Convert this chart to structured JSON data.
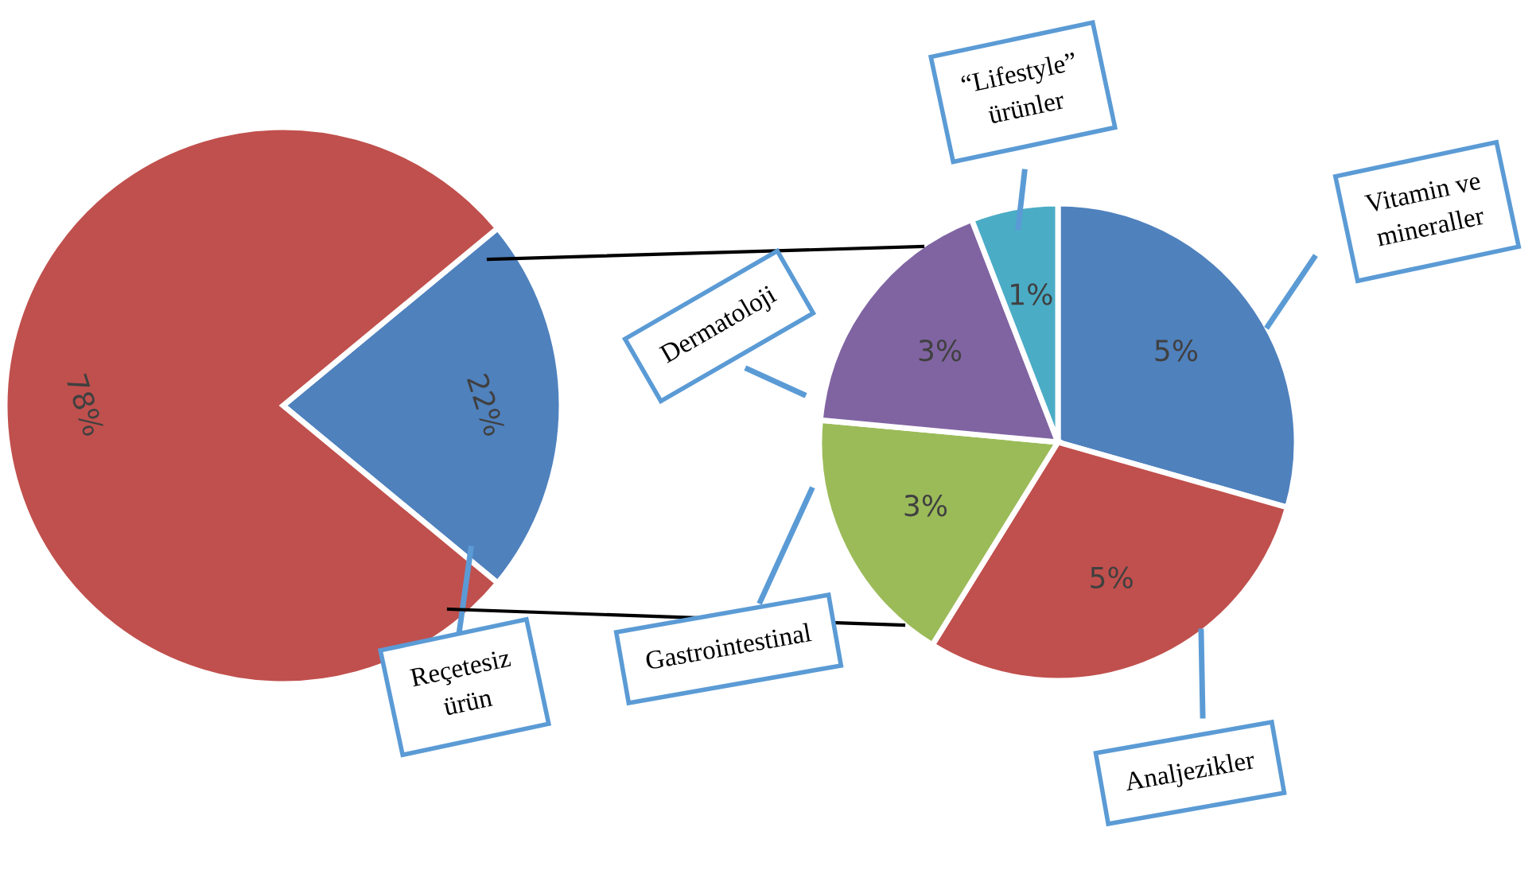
{
  "chart_data": [
    {
      "type": "pie",
      "categories": [
        "Reçetesiz ürün",
        null
      ],
      "values": [
        22,
        78
      ],
      "colors": [
        "#4f81bd",
        "#c0504d"
      ],
      "value_labels": [
        "22%",
        "78%"
      ]
    },
    {
      "type": "pie",
      "categories": [
        "Vitamin ve mineraller",
        "Analjezikler",
        "Gastrointestinal",
        "Dermatoloji",
        "“Lifestyle” ürünler"
      ],
      "values": [
        5,
        5,
        3,
        3,
        1
      ],
      "colors": [
        "#4f81bd",
        "#c0504d",
        "#9bbb59",
        "#8064a2",
        "#4bacc6"
      ],
      "value_labels": [
        "5%",
        "5%",
        "3%",
        "3%",
        "1%"
      ]
    }
  ]
}
